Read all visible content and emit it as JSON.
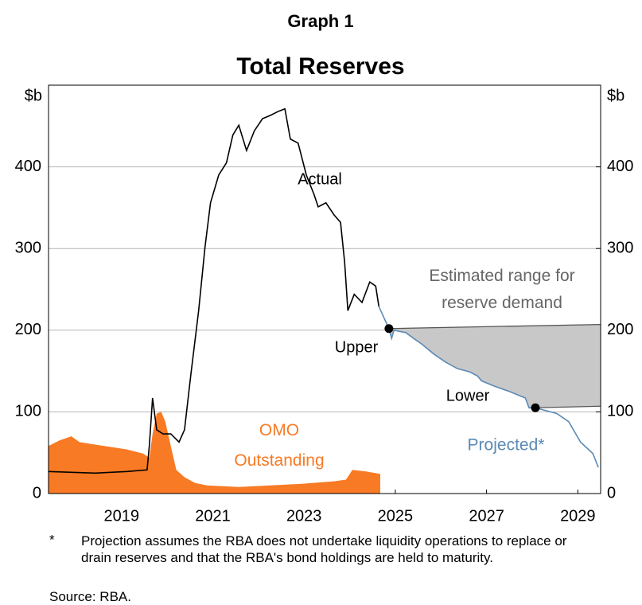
{
  "chart_data": {
    "type": "line",
    "graph_label": "Graph 1",
    "title": "Total Reserves",
    "y_unit": "$b",
    "xlim": [
      2017.9,
      2030
    ],
    "xticks": [
      {
        "value": 2019.5,
        "label": "2019"
      },
      {
        "value": 2021.5,
        "label": "2021"
      },
      {
        "value": 2023.5,
        "label": "2023"
      },
      {
        "value": 2025.5,
        "label": "2025"
      },
      {
        "value": 2027.5,
        "label": "2027"
      },
      {
        "value": 2029.5,
        "label": "2029"
      }
    ],
    "ylim": [
      0,
      500
    ],
    "yticks": [
      0,
      100,
      200,
      300,
      400
    ],
    "y2lim": [
      0,
      500
    ],
    "y2ticks": [
      0,
      100,
      200,
      300,
      400
    ],
    "grid": true,
    "series": [
      {
        "name": "Actual",
        "color": "#000000",
        "kind": "line",
        "x": [
          2017.89,
          2018.92,
          2019.62,
          2020.06,
          2020.11,
          2020.18,
          2020.27,
          2020.41,
          2020.58,
          2020.76,
          2020.88,
          2021.02,
          2021.19,
          2021.33,
          2021.45,
          2021.63,
          2021.8,
          2021.94,
          2022.07,
          2022.24,
          2022.41,
          2022.59,
          2022.76,
          2022.94,
          2023.08,
          2023.2,
          2023.37,
          2023.55,
          2023.72,
          2023.81,
          2023.98,
          2024.16,
          2024.3,
          2024.39,
          2024.46,
          2024.6,
          2024.77,
          2024.94,
          2025.07,
          2025.14
        ],
        "values": [
          27,
          25,
          27,
          29,
          59,
          117,
          78,
          73,
          73,
          63,
          78,
          146,
          224,
          302,
          356,
          390,
          405,
          439,
          451,
          420,
          444,
          459,
          463,
          468,
          471,
          434,
          429,
          390,
          366,
          351,
          356,
          341,
          332,
          283,
          224,
          244,
          234,
          259,
          254,
          229
        ]
      },
      {
        "name": "Projected*",
        "color": "#5b8ab5",
        "kind": "line",
        "x": [
          2025.14,
          2025.36,
          2025.42,
          2025.47,
          2025.73,
          2025.9,
          2026.08,
          2026.34,
          2026.6,
          2026.86,
          2027.13,
          2027.3,
          2027.39,
          2027.65,
          2028.0,
          2028.35,
          2028.43,
          2028.57,
          2029.04,
          2029.3,
          2029.56,
          2029.83,
          2029.95
        ],
        "values": [
          229,
          202,
          190,
          200,
          197,
          190,
          183,
          171,
          161,
          153,
          149,
          144,
          138,
          132,
          125,
          117,
          105,
          105,
          98,
          88,
          63,
          49,
          32
        ]
      },
      {
        "name": "Upper",
        "color": "#555555",
        "kind": "range-upper",
        "x": [
          2025.36,
          2030
        ],
        "values": [
          202,
          207
        ]
      },
      {
        "name": "Lower",
        "color": "#555555",
        "kind": "range-lower",
        "x": [
          2028.57,
          2030
        ],
        "values": [
          105,
          107
        ]
      },
      {
        "name": "OMO Outstanding",
        "color": "#f87a24",
        "kind": "area",
        "x": [
          2017.89,
          2018.14,
          2018.4,
          2018.58,
          2018.92,
          2019.27,
          2019.62,
          2019.97,
          2020.11,
          2020.18,
          2020.27,
          2020.37,
          2020.46,
          2020.58,
          2020.7,
          2020.88,
          2021.11,
          2021.37,
          2022.07,
          2022.76,
          2023.46,
          2024.16,
          2024.42,
          2024.56,
          2024.86,
          2025.17
        ],
        "values": [
          58,
          65,
          70,
          63,
          60,
          57,
          54,
          49,
          44,
          73,
          98,
          100,
          88,
          58,
          29,
          20,
          13,
          10,
          8,
          10,
          12,
          15,
          17,
          29,
          27,
          24
        ]
      }
    ],
    "range_label": "Estimated range for reserve demand",
    "range_color": "#c8c8c8",
    "footnote_mark": "*",
    "footnote": "Projection assumes the RBA does not undertake liquidity operations to replace or drain reserves and that the RBA's bond holdings are held to maturity.",
    "source": "Source: RBA."
  }
}
